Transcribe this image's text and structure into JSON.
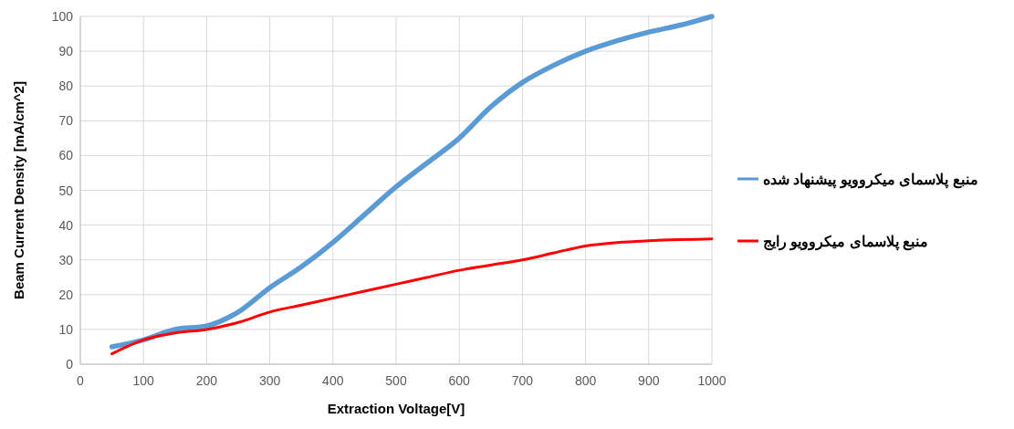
{
  "chart_data": {
    "type": "line",
    "xlabel": "Extraction Voltage[V]",
    "ylabel": "Beam Current Density [mA/cm^2]",
    "x": [
      50,
      100,
      150,
      200,
      250,
      300,
      350,
      400,
      450,
      500,
      550,
      600,
      650,
      700,
      750,
      800,
      850,
      900,
      950,
      1000
    ],
    "series": [
      {
        "name": "منبع پلاسمای میکروویو پیشنهاد شده",
        "color": "#5b9bd5",
        "values": [
          5,
          7,
          10,
          11,
          15,
          22,
          28,
          35,
          43,
          51,
          58,
          65,
          74,
          81,
          86,
          90,
          93,
          95.5,
          97.5,
          100
        ]
      },
      {
        "name": "منبع پلاسمای میکروویو رایج",
        "color": "#ff0000",
        "values": [
          3,
          7,
          9,
          10,
          12,
          15,
          17,
          19,
          21,
          23,
          25,
          27,
          28.5,
          30,
          32,
          34,
          35,
          35.5,
          35.8,
          36
        ]
      }
    ],
    "xlim": [
      0,
      1000
    ],
    "xticks": [
      0,
      100,
      200,
      300,
      400,
      500,
      600,
      700,
      800,
      900,
      1000
    ],
    "ylim": [
      0,
      100
    ],
    "yticks": [
      0,
      10,
      20,
      30,
      40,
      50,
      60,
      70,
      80,
      90,
      100
    ],
    "grid": true,
    "legend": "right",
    "marker": "none",
    "line_style": "solid"
  }
}
